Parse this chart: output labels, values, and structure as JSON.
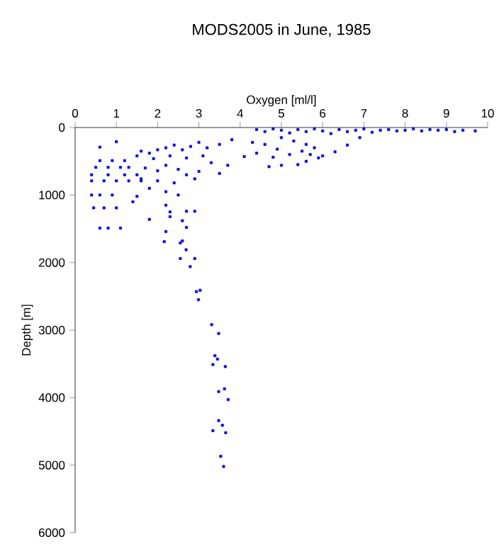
{
  "chart_data": {
    "type": "scatter",
    "title": "MODS2005 in June, 1985",
    "xlabel": "Oxygen [ml/l]",
    "ylabel": "Depth [m]",
    "xlim": [
      0,
      10
    ],
    "xticks": [
      0,
      1,
      2,
      3,
      4,
      5,
      6,
      7,
      8,
      9,
      10
    ],
    "ylim": [
      6000,
      0
    ],
    "yticks": [
      0,
      1000,
      2000,
      3000,
      4000,
      5000,
      6000
    ],
    "marker": "square",
    "series": [
      {
        "color": "#0000ff",
        "x": [
          4.4,
          4.6,
          4.8,
          5.0,
          5.2,
          5.4,
          5.6,
          5.8,
          6.0,
          6.2,
          6.4,
          6.6,
          6.8,
          7.0,
          7.2,
          7.4,
          7.6,
          7.8,
          8.0,
          8.2,
          8.4,
          8.6,
          8.8,
          9.0,
          9.2,
          9.4,
          9.7,
          6.9,
          6.6,
          6.3,
          5.0,
          5.3,
          5.6,
          5.8,
          5.5,
          5.7,
          5.9,
          5.6,
          5.4,
          6.0,
          5.2,
          4.9,
          4.6,
          4.3,
          4.4,
          4.1,
          4.8,
          5.0,
          4.7,
          3.8,
          3.5,
          3.2,
          3.0,
          2.8,
          2.6,
          2.4,
          2.2,
          2.0,
          1.8,
          1.6,
          1.5,
          1.9,
          2.3,
          2.7,
          3.1,
          3.3,
          3.7,
          3.5,
          3.0,
          2.7,
          2.5,
          2.2,
          2.0,
          1.7,
          1.6,
          2.0,
          2.4,
          2.9,
          1.8,
          2.2,
          2.5,
          2.2,
          1.5,
          1.4,
          2.3,
          2.7,
          2.9,
          1.8,
          2.3,
          2.6,
          2.7,
          2.2,
          2.6,
          0.6,
          1.0,
          0.6,
          0.9,
          1.2,
          0.5,
          0.8,
          1.1,
          1.3,
          0.4,
          0.8,
          1.2,
          1.5,
          0.4,
          0.7,
          1.0,
          1.3,
          1.6,
          0.4,
          0.6,
          0.9,
          0.45,
          0.7,
          1.0,
          0.6,
          0.8,
          1.1,
          2.16,
          2.55,
          2.69,
          2.55,
          2.9,
          2.79,
          2.94,
          3.03,
          2.99,
          3.31,
          3.48,
          3.39,
          3.45,
          3.34,
          3.64,
          3.48,
          3.62,
          3.71,
          3.48,
          3.57,
          3.34,
          3.65,
          3.53,
          3.6
        ],
        "values": [
          30,
          60,
          20,
          40,
          80,
          30,
          60,
          20,
          50,
          90,
          30,
          60,
          40,
          20,
          70,
          40,
          30,
          50,
          40,
          20,
          50,
          30,
          40,
          30,
          60,
          40,
          50,
          150,
          260,
          360,
          150,
          200,
          250,
          300,
          350,
          400,
          450,
          500,
          550,
          420,
          400,
          320,
          250,
          220,
          380,
          430,
          440,
          560,
          580,
          180,
          250,
          300,
          220,
          280,
          330,
          260,
          300,
          330,
          380,
          350,
          420,
          460,
          420,
          450,
          420,
          520,
          560,
          680,
          650,
          700,
          620,
          560,
          640,
          600,
          760,
          790,
          820,
          760,
          900,
          950,
          1000,
          1150,
          1020,
          1100,
          1250,
          1240,
          1240,
          1360,
          1320,
          1380,
          1480,
          1540,
          1680,
          290,
          210,
          490,
          490,
          490,
          590,
          590,
          590,
          590,
          700,
          700,
          700,
          700,
          790,
          790,
          790,
          790,
          790,
          1000,
          1000,
          1000,
          1190,
          1190,
          1190,
          1490,
          1490,
          1490,
          1690,
          1710,
          1810,
          1940,
          1940,
          2060,
          2430,
          2410,
          2550,
          2920,
          3050,
          3380,
          3430,
          3510,
          3540,
          3910,
          3870,
          4030,
          4340,
          4410,
          4490,
          4520,
          4870,
          5020
        ]
      }
    ]
  }
}
